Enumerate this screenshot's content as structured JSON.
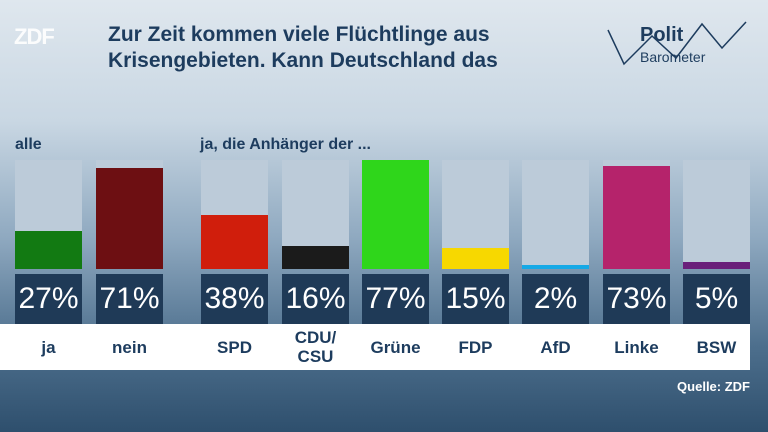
{
  "header": {
    "logo": "ZDF",
    "title": "Zur Zeit kommen viele Flüchtlinge aus Krisengebieten. Kann Deutschland das",
    "brand_line1": "Polit",
    "brand_line2": "Barometer"
  },
  "labels": {
    "all": "alle",
    "supporters": "ja, die Anhänger der ..."
  },
  "footer": {
    "source": "Quelle: ZDF"
  },
  "chart_data": {
    "type": "bar",
    "categories": [
      "ja",
      "nein",
      "SPD",
      "CDU/ CSU",
      "Grüne",
      "FDP",
      "AfD",
      "Linke",
      "BSW"
    ],
    "values": [
      27,
      71,
      38,
      16,
      77,
      15,
      2,
      73,
      5
    ],
    "value_labels": [
      "27%",
      "71%",
      "38%",
      "16%",
      "77%",
      "15%",
      "2%",
      "73%",
      "5%"
    ],
    "colors": [
      "#127a12",
      "#6d0f12",
      "#d01e0c",
      "#1b1b1b",
      "#2fd61b",
      "#f7d800",
      "#16a9e6",
      "#b5236b",
      "#6a1f7a"
    ],
    "ylim": [
      0,
      77
    ]
  }
}
